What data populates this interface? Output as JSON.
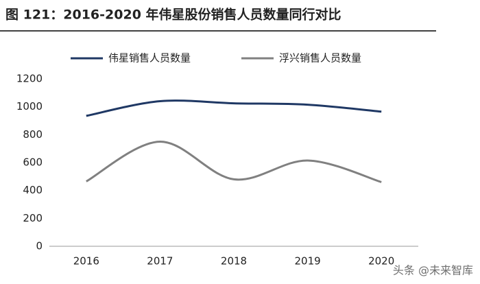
{
  "chart_data": {
    "type": "line",
    "title": "图 121：2016-2020 年伟星股份销售人员数量同行对比",
    "categories": [
      "2016",
      "2017",
      "2018",
      "2019",
      "2020"
    ],
    "series": [
      {
        "name": "伟星销售人员数量",
        "color": "#1f3864",
        "values": [
          935,
          1040,
          1025,
          1015,
          965
        ]
      },
      {
        "name": "浮兴销售人员数量",
        "color": "#808080",
        "values": [
          465,
          750,
          480,
          615,
          460
        ]
      }
    ],
    "ylim": [
      0,
      1200
    ],
    "yticks": [
      0,
      200,
      400,
      600,
      800,
      1000,
      1200
    ],
    "smooth": true,
    "legend": "top",
    "watermark": "头条 @未来智库"
  }
}
